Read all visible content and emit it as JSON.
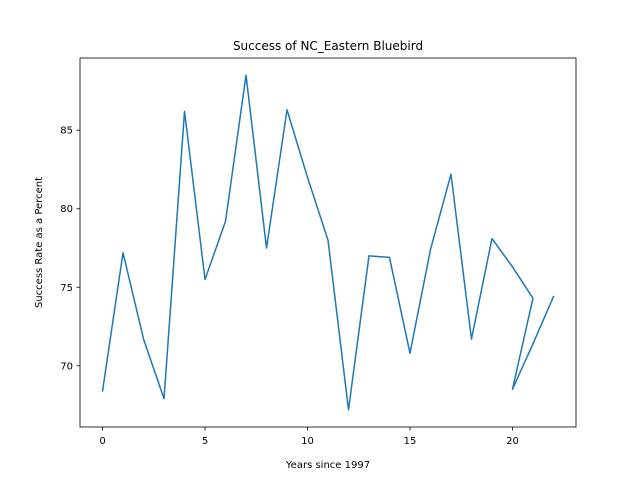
{
  "chart_data": {
    "type": "line",
    "title": "Success of NC_Eastern Bluebird",
    "xlabel": "Years since 1997",
    "ylabel": "Success Rate as a Percent",
    "xlim": [
      -1.1,
      23.1
    ],
    "ylim": [
      66.1,
      89.6
    ],
    "xticks": [
      0,
      5,
      10,
      15,
      20
    ],
    "yticks": [
      70,
      75,
      80,
      85
    ],
    "grid": false,
    "legend": "none",
    "colors": {
      "line": "#1f77b4",
      "axes": "#000000",
      "background": "#ffffff"
    },
    "series": [
      {
        "x": [
          0,
          1,
          2,
          3,
          4,
          5,
          6,
          7,
          8,
          9,
          10,
          11,
          12,
          13,
          14,
          15,
          16,
          17,
          18,
          19,
          20,
          21,
          20,
          21,
          22
        ],
        "values": [
          68.4,
          77.2,
          71.7,
          67.9,
          86.2,
          75.5,
          79.2,
          88.5,
          77.5,
          86.3,
          82.0,
          78.0,
          67.2,
          77.0,
          76.9,
          70.8,
          77.4,
          82.2,
          71.7,
          78.1,
          76.3,
          74.3,
          68.5,
          71.4,
          74.4
        ]
      }
    ]
  }
}
